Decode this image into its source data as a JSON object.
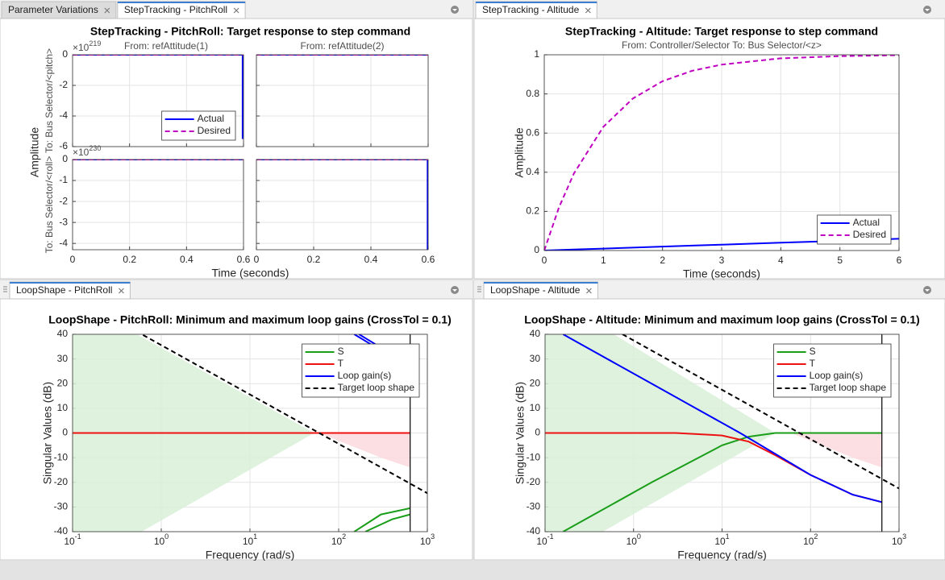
{
  "panels": [
    {
      "tabs": [
        "Parameter Variations",
        "StepTracking - PitchRoll"
      ],
      "active_tab": 1,
      "plot": {
        "type": "line_grid",
        "title": "StepTracking - PitchRoll: Target response to step command",
        "xlabel": "Time (seconds)",
        "ylabel": "Amplitude",
        "columns": [
          "From: refAttitude(1)",
          "From: refAttitude(2)"
        ],
        "xlim": [
          0,
          0.6
        ],
        "xticks": [
          0,
          0.2,
          0.4,
          0.6
        ],
        "grid": true,
        "legend": "lower right",
        "series": [
          {
            "name": "Actual",
            "color": "#0000ff",
            "dashed": false
          },
          {
            "name": "Desired",
            "color": "#c000c0",
            "dashed": true
          }
        ],
        "rows": [
          {
            "label": "To: Bus Selector/<pitch>",
            "exponent": {
              "base": "×10",
              "power": "219"
            },
            "ylim": [
              -6,
              0
            ],
            "yticks": [
              0,
              -2,
              -4,
              -6
            ],
            "cells": [
              {
                "lines": [
                  {
                    "x": [
                      0,
                      0.597,
                      0.597
                    ],
                    "values": [
                      0,
                      0,
                      -5.5
                    ]
                  },
                  {
                    "x": [
                      0,
                      0.6
                    ],
                    "values": [
                      0,
                      0
                    ]
                  }
                ]
              },
              {
                "lines": [
                  {
                    "x": [
                      0,
                      0.6
                    ],
                    "values": [
                      0,
                      0
                    ]
                  },
                  {
                    "x": [
                      0,
                      0.6
                    ],
                    "values": [
                      0,
                      0
                    ]
                  }
                ]
              }
            ]
          },
          {
            "label": "To: Bus Selector/<roll>",
            "exponent": {
              "base": "×10",
              "power": "230"
            },
            "ylim": [
              -4.3,
              0
            ],
            "yticks": [
              0,
              -1,
              -2,
              -3,
              -4
            ],
            "cells": [
              {
                "lines": [
                  {
                    "x": [
                      0,
                      0.6
                    ],
                    "values": [
                      0,
                      0
                    ]
                  },
                  {
                    "x": [
                      0,
                      0.6
                    ],
                    "values": [
                      0,
                      0
                    ]
                  }
                ]
              },
              {
                "lines": [
                  {
                    "x": [
                      0,
                      0.598,
                      0.598
                    ],
                    "values": [
                      0,
                      0,
                      -4.3
                    ]
                  },
                  {
                    "x": [
                      0,
                      0.6
                    ],
                    "values": [
                      0,
                      0
                    ]
                  }
                ]
              }
            ]
          }
        ]
      }
    },
    {
      "tabs": [
        "StepTracking - Altitude"
      ],
      "active_tab": 0,
      "plot": {
        "type": "line",
        "title": "StepTracking - Altitude: Target response to step command",
        "subtitle": "From: Controller/Selector  To: Bus Selector/<z>",
        "xlabel": "Time (seconds)",
        "ylabel": "Amplitude",
        "xlim": [
          0,
          6
        ],
        "xticks": [
          0,
          1,
          2,
          3,
          4,
          5,
          6
        ],
        "ylim": [
          0,
          1
        ],
        "yticks": [
          0,
          0.2,
          0.4,
          0.6,
          0.8,
          1
        ],
        "grid": true,
        "log_x": false,
        "legend": "lower right",
        "series": [
          {
            "name": "Actual",
            "color": "#0000ff",
            "dashed": false,
            "lines": [
              {
                "x": [
                  0,
                  0.25,
                  0.5,
                  1,
                  1.5,
                  2,
                  2.5,
                  3,
                  4,
                  5,
                  6
                ],
                "values": [
                  0,
                  0.0025,
                  0.005,
                  0.01,
                  0.015,
                  0.02,
                  0.025,
                  0.03,
                  0.04,
                  0.05,
                  0.06
                ]
              }
            ]
          },
          {
            "name": "Desired",
            "color": "#c000c0",
            "dashed": true,
            "lines": [
              {
                "x": [
                  0,
                  0.25,
                  0.5,
                  1,
                  1.5,
                  2,
                  2.5,
                  3,
                  4,
                  5,
                  6
                ],
                "values": [
                  0,
                  0.221,
                  0.393,
                  0.632,
                  0.777,
                  0.865,
                  0.918,
                  0.95,
                  0.982,
                  0.993,
                  0.998
                ]
              }
            ]
          }
        ]
      }
    },
    {
      "tabs": [
        "LoopShape - PitchRoll"
      ],
      "active_tab": 0,
      "plot": {
        "type": "line",
        "title": "LoopShape - PitchRoll: Minimum and maximum loop gains (CrossTol = 0.1)",
        "xlabel": "Frequency (rad/s)",
        "ylabel": "Singular Values (dB)",
        "xlim": [
          0.1,
          1000
        ],
        "xticks": [
          {
            "value": 0.1,
            "label": "10",
            "exponent": "-1"
          },
          {
            "value": 1,
            "label": "10",
            "exponent": "0"
          },
          {
            "value": 10,
            "label": "10",
            "exponent": "1"
          },
          {
            "value": 100,
            "label": "10",
            "exponent": "2"
          },
          {
            "value": 1000,
            "label": "10",
            "exponent": "3"
          }
        ],
        "ylim": [
          -40,
          40
        ],
        "yticks": [
          -40,
          -30,
          -20,
          -10,
          0,
          10,
          20,
          30,
          40
        ],
        "grid": true,
        "log_x": true,
        "legend": "upper right",
        "vline": 640,
        "regions": [
          {
            "color": "#d8f0d8",
            "x": [
              0.1,
              0.53,
              53,
              0.6,
              0.1
            ],
            "values": [
              40,
              40,
              0,
              -40,
              -40
            ]
          },
          {
            "color": "#fcd9de",
            "x": [
              60,
              640,
              640,
              300
            ],
            "values": [
              0,
              0,
              -14,
              -10
            ]
          }
        ],
        "series": [
          {
            "name": "S",
            "color": "#1a9e1a",
            "dashed": false,
            "lines": [
              {
                "x": [
                  150,
                  300,
                  640
                ],
                "values": [
                  -40,
                  -33,
                  -30.5
                ]
              },
              {
                "x": [
                  200,
                  400,
                  640
                ],
                "values": [
                  -40,
                  -35,
                  -33
                ]
              }
            ]
          },
          {
            "name": "T",
            "color": "#ee1111",
            "dashed": false,
            "lines": [
              {
                "x": [
                  0.1,
                  640
                ],
                "values": [
                  0,
                  0
                ]
              }
            ]
          },
          {
            "name": "Loop gain(s)",
            "color": "#0000ff",
            "dashed": false,
            "lines": [
              {
                "x": [
                  150,
                  230
                ],
                "values": [
                  40,
                  36
                ]
              },
              {
                "x": [
                  170,
                  260
                ],
                "values": [
                  40,
                  36
                ]
              }
            ]
          },
          {
            "name": "Target loop shape",
            "color": "#000000",
            "dashed": true,
            "lines": [
              {
                "x": [
                  0.1,
                  1000
                ],
                "values": [
                  55.6,
                  -24.4
                ]
              }
            ]
          }
        ]
      }
    },
    {
      "tabs": [
        "LoopShape - Altitude"
      ],
      "active_tab": 0,
      "plot": {
        "type": "line",
        "title": "LoopShape - Altitude: Minimum and maximum loop gains (CrossTol = 0.1)",
        "xlabel": "Frequency (rad/s)",
        "ylabel": "Singular Values (dB)",
        "xlim": [
          0.1,
          1000
        ],
        "xticks": [
          {
            "value": 0.1,
            "label": "10",
            "exponent": "-1"
          },
          {
            "value": 1,
            "label": "10",
            "exponent": "0"
          },
          {
            "value": 10,
            "label": "10",
            "exponent": "1"
          },
          {
            "value": 100,
            "label": "10",
            "exponent": "2"
          },
          {
            "value": 1000,
            "label": "10",
            "exponent": "3"
          }
        ],
        "ylim": [
          -40,
          40
        ],
        "yticks": [
          -40,
          -30,
          -20,
          -10,
          0,
          10,
          20,
          30,
          40
        ],
        "grid": true,
        "log_x": true,
        "legend": "upper right",
        "vline": 640,
        "regions": [
          {
            "color": "#d8f0d8",
            "x": [
              0.1,
              0.6,
              40,
              0.45,
              0.1
            ],
            "values": [
              40,
              40,
              0,
              -40,
              -40
            ]
          },
          {
            "color": "#fcd9de",
            "x": [
              60,
              640,
              640,
              300
            ],
            "values": [
              0,
              0,
              -14,
              -10
            ]
          }
        ],
        "series": [
          {
            "name": "S",
            "color": "#1a9e1a",
            "dashed": false,
            "lines": [
              {
                "x": [
                  0.16,
                  1.6,
                  10,
                  20,
                  40,
                  640
                ],
                "values": [
                  -40,
                  -20,
                  -5,
                  -1.5,
                  0,
                  0
                ]
              }
            ]
          },
          {
            "name": "T",
            "color": "#ee1111",
            "dashed": false,
            "lines": [
              {
                "x": [
                  0.1,
                  3,
                  10,
                  20,
                  40,
                  100,
                  300,
                  640
                ],
                "values": [
                  0,
                  0,
                  -1,
                  -3.5,
                  -9,
                  -17,
                  -25,
                  -28
                ]
              }
            ]
          },
          {
            "name": "Loop gain(s)",
            "color": "#0000ff",
            "dashed": false,
            "lines": [
              {
                "x": [
                  0.16,
                  1.6,
                  16,
                  40,
                  100,
                  300,
                  640
                ],
                "values": [
                  40,
                  20,
                  0,
                  -8.5,
                  -17,
                  -25,
                  -28
                ]
              }
            ]
          },
          {
            "name": "Target loop shape",
            "color": "#000000",
            "dashed": true,
            "lines": [
              {
                "x": [
                  0.1,
                  1000
                ],
                "values": [
                  57.5,
                  -22.5
                ]
              }
            ]
          }
        ]
      }
    }
  ]
}
